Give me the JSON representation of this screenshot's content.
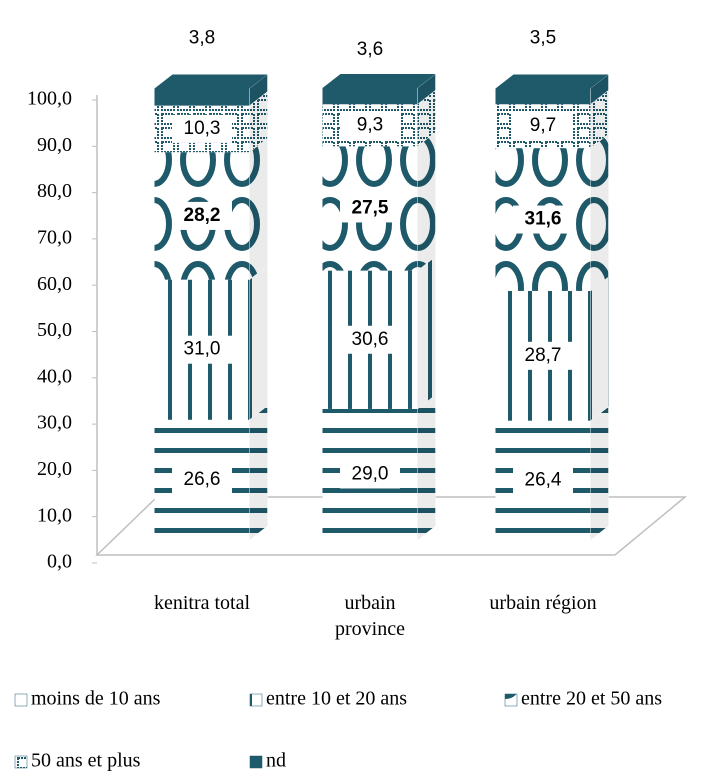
{
  "chart_data": {
    "type": "bar3d_stacked",
    "categories": [
      "kenitra total",
      "urbain province",
      "urbain région"
    ],
    "series": [
      {
        "name": "moins de 10 ans",
        "color": "#1f5a6b",
        "pattern": "hlines",
        "values": [
          26.6,
          29.0,
          26.4
        ],
        "value_labels": [
          "26,6",
          "29,0",
          "26,4"
        ]
      },
      {
        "name": "entre 10 et 20 ans",
        "color": "#1f5a6b",
        "pattern": "vlines",
        "values": [
          31.0,
          30.6,
          28.7
        ],
        "value_labels": [
          "31,0",
          "30,6",
          "28,7"
        ]
      },
      {
        "name": "entre 20 et 50 ans",
        "color": "#1f5a6b",
        "pattern": "rings",
        "bold": true,
        "values": [
          28.2,
          27.5,
          31.6
        ],
        "value_labels": [
          "28,2",
          "27,5",
          "31,6"
        ]
      },
      {
        "name": "50 ans et plus",
        "color": "#1f5a6b",
        "pattern": "bricks",
        "values": [
          10.3,
          9.3,
          9.7
        ],
        "value_labels": [
          "10,3",
          "9,3",
          "9,7"
        ]
      },
      {
        "name": "nd",
        "color": "#1f5a6b",
        "pattern": "solid",
        "values": [
          3.8,
          3.6,
          3.5
        ],
        "value_labels": [
          "3,8",
          "3,6",
          "3,5"
        ]
      }
    ],
    "ylim": [
      0,
      100
    ],
    "yticks": [
      {
        "value": 0,
        "label": "0,0"
      },
      {
        "value": 10,
        "label": "10,0"
      },
      {
        "value": 20,
        "label": "20,0"
      },
      {
        "value": 30,
        "label": "30,0"
      },
      {
        "value": 40,
        "label": "40,0"
      },
      {
        "value": 50,
        "label": "50,0"
      },
      {
        "value": 60,
        "label": "60,0"
      },
      {
        "value": 70,
        "label": "70,0"
      },
      {
        "value": 80,
        "label": "80,0"
      },
      {
        "value": 90,
        "label": "90,0"
      },
      {
        "value": 100,
        "label": "100,0"
      }
    ]
  }
}
